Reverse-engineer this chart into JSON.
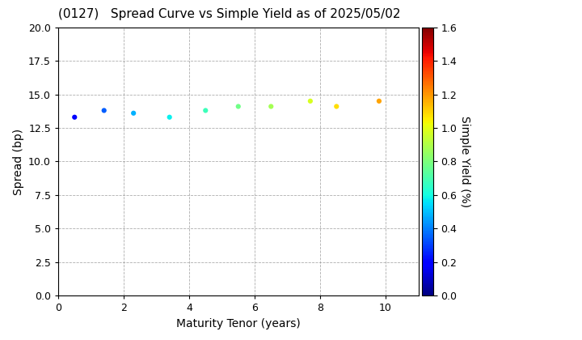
{
  "title": "(0127)   Spread Curve vs Simple Yield as of 2025/05/02",
  "xlabel": "Maturity Tenor (years)",
  "ylabel": "Spread (bp)",
  "colorbar_label": "Simple Yield (%)",
  "xlim": [
    0,
    11
  ],
  "ylim": [
    0.0,
    20.0
  ],
  "xticks": [
    0,
    2,
    4,
    6,
    8,
    10
  ],
  "yticks": [
    0.0,
    2.5,
    5.0,
    7.5,
    10.0,
    12.5,
    15.0,
    17.5,
    20.0
  ],
  "colorbar_min": 0.0,
  "colorbar_max": 1.6,
  "colorbar_ticks": [
    0.0,
    0.2,
    0.4,
    0.6,
    0.8,
    1.0,
    1.2,
    1.4,
    1.6
  ],
  "scatter_x": [
    0.5,
    1.4,
    2.3,
    3.4,
    4.5,
    5.5,
    6.5,
    7.7,
    8.5,
    9.8
  ],
  "scatter_y": [
    13.3,
    13.8,
    13.6,
    13.3,
    13.8,
    14.1,
    14.1,
    14.5,
    14.1,
    14.5
  ],
  "scatter_c": [
    0.2,
    0.35,
    0.48,
    0.58,
    0.68,
    0.78,
    0.88,
    0.98,
    1.08,
    1.18
  ],
  "marker_size": 20,
  "background_color": "#ffffff",
  "grid_color": "#999999",
  "grid_style": "--",
  "title_fontsize": 11,
  "axis_fontsize": 10,
  "tick_fontsize": 9,
  "colorbar_tick_fontsize": 9,
  "colorbar_label_fontsize": 10
}
